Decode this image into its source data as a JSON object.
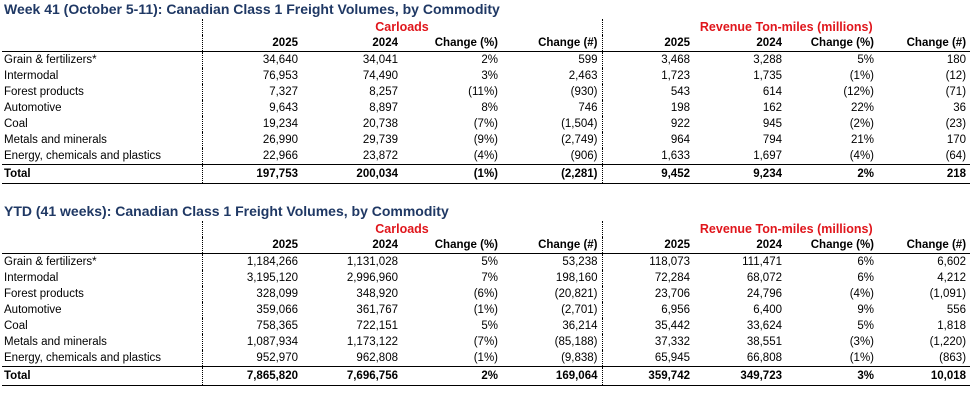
{
  "week": {
    "title": "Week 41 (October 5-11): Canadian Class 1 Freight Volumes, by Commodity",
    "groups": {
      "carloads": "Carloads",
      "rtm": "Revenue Ton-miles (millions)"
    },
    "headers": [
      "2025",
      "2024",
      "Change (%)",
      "Change (#)",
      "2025",
      "2024",
      "Change (%)",
      "Change (#)"
    ],
    "rows": [
      {
        "label": "Grain & fertilizers*",
        "cells": [
          "34,640",
          "34,041",
          "2%",
          "599",
          "3,468",
          "3,288",
          "5%",
          "180"
        ]
      },
      {
        "label": "Intermodal",
        "cells": [
          "76,953",
          "74,490",
          "3%",
          "2,463",
          "1,723",
          "1,735",
          "(1%)",
          "(12)"
        ]
      },
      {
        "label": "Forest products",
        "cells": [
          "7,327",
          "8,257",
          "(11%)",
          "(930)",
          "543",
          "614",
          "(12%)",
          "(71)"
        ]
      },
      {
        "label": "Automotive",
        "cells": [
          "9,643",
          "8,897",
          "8%",
          "746",
          "198",
          "162",
          "22%",
          "36"
        ]
      },
      {
        "label": "Coal",
        "cells": [
          "19,234",
          "20,738",
          "(7%)",
          "(1,504)",
          "922",
          "945",
          "(2%)",
          "(23)"
        ]
      },
      {
        "label": "Metals and minerals",
        "cells": [
          "26,990",
          "29,739",
          "(9%)",
          "(2,749)",
          "964",
          "794",
          "21%",
          "170"
        ]
      },
      {
        "label": "Energy, chemicals and plastics",
        "cells": [
          "22,966",
          "23,872",
          "(4%)",
          "(906)",
          "1,633",
          "1,697",
          "(4%)",
          "(64)"
        ]
      }
    ],
    "total": {
      "label": "Total",
      "cells": [
        "197,753",
        "200,034",
        "(1%)",
        "(2,281)",
        "9,452",
        "9,234",
        "2%",
        "218"
      ]
    }
  },
  "ytd": {
    "title": "YTD (41 weeks): Canadian Class 1 Freight Volumes, by Commodity",
    "groups": {
      "carloads": "Carloads",
      "rtm": "Revenue Ton-miles (millions)"
    },
    "headers": [
      "2025",
      "2024",
      "Change (%)",
      "Change (#)",
      "2025",
      "2024",
      "Change (%)",
      "Change (#)"
    ],
    "rows": [
      {
        "label": "Grain & fertilizers*",
        "cells": [
          "1,184,266",
          "1,131,028",
          "5%",
          "53,238",
          "118,073",
          "111,471",
          "6%",
          "6,602"
        ]
      },
      {
        "label": "Intermodal",
        "cells": [
          "3,195,120",
          "2,996,960",
          "7%",
          "198,160",
          "72,284",
          "68,072",
          "6%",
          "4,212"
        ]
      },
      {
        "label": "Forest products",
        "cells": [
          "328,099",
          "348,920",
          "(6%)",
          "(20,821)",
          "23,706",
          "24,796",
          "(4%)",
          "(1,091)"
        ]
      },
      {
        "label": "Automotive",
        "cells": [
          "359,066",
          "361,767",
          "(1%)",
          "(2,701)",
          "6,956",
          "6,400",
          "9%",
          "556"
        ]
      },
      {
        "label": "Coal",
        "cells": [
          "758,365",
          "722,151",
          "5%",
          "36,214",
          "35,442",
          "33,624",
          "5%",
          "1,818"
        ]
      },
      {
        "label": "Metals and minerals",
        "cells": [
          "1,087,934",
          "1,173,122",
          "(7%)",
          "(85,188)",
          "37,332",
          "38,551",
          "(3%)",
          "(1,220)"
        ]
      },
      {
        "label": "Energy, chemicals and plastics",
        "cells": [
          "952,970",
          "962,808",
          "(1%)",
          "(9,838)",
          "65,945",
          "66,808",
          "(1%)",
          "(863)"
        ]
      }
    ],
    "total": {
      "label": "Total",
      "cells": [
        "7,865,820",
        "7,696,756",
        "2%",
        "169,064",
        "359,742",
        "349,723",
        "3%",
        "10,018"
      ]
    }
  }
}
